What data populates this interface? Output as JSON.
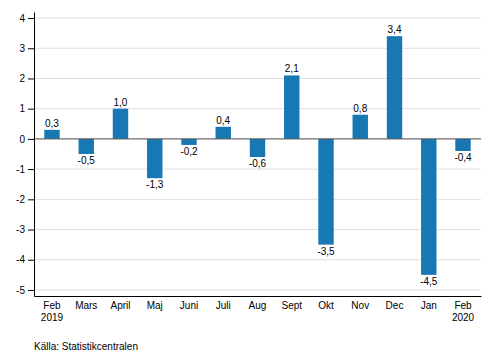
{
  "chart_data": {
    "type": "bar",
    "categories": [
      "Feb\n2019",
      "Mars",
      "April",
      "Maj",
      "Juni",
      "Juli",
      "Aug",
      "Sept",
      "Okt",
      "Nov",
      "Dec",
      "Jan",
      "Feb\n2020"
    ],
    "values": [
      0.3,
      -0.5,
      1.0,
      -1.3,
      -0.2,
      0.4,
      -0.6,
      2.1,
      -3.5,
      0.8,
      3.4,
      -4.5,
      -0.4
    ],
    "value_labels": [
      "0,3",
      "-0,5",
      "1,0",
      "-1,3",
      "-0,2",
      "0,4",
      "-0,6",
      "2,1",
      "-3,5",
      "0,8",
      "3,4",
      "-4,5",
      "-0,4"
    ],
    "data_labels": true,
    "color": "#1778b4",
    "ylim": [
      -5.2,
      4.2
    ],
    "yticks": [
      -5,
      -4,
      -3,
      -2,
      -1,
      0,
      1,
      2,
      3,
      4
    ],
    "grid": true,
    "annotations": [
      "Källa: Statistikcentralen"
    ]
  }
}
